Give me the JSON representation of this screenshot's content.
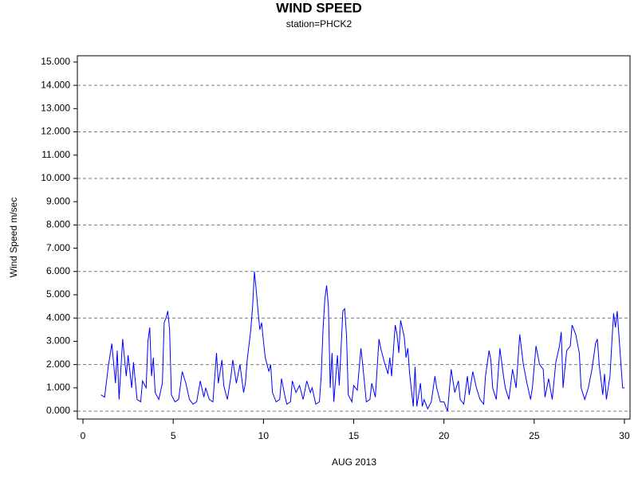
{
  "chart_data": {
    "type": "line",
    "title": "WIND SPEED",
    "subtitle": "station=PHCK2",
    "xlabel": "AUG 2013",
    "ylabel": "Wind Speed m/sec",
    "x": [
      1.0,
      1.2,
      1.4,
      1.6,
      1.8,
      1.9,
      2.0,
      2.2,
      2.4,
      2.5,
      2.7,
      2.8,
      3.0,
      3.2,
      3.3,
      3.5,
      3.6,
      3.7,
      3.8,
      3.9,
      4.0,
      4.2,
      4.4,
      4.5,
      4.6,
      4.7,
      4.8,
      4.9,
      5.1,
      5.3,
      5.5,
      5.7,
      5.9,
      6.1,
      6.3,
      6.5,
      6.7,
      6.8,
      7.0,
      7.2,
      7.4,
      7.5,
      7.7,
      7.8,
      8.0,
      8.2,
      8.3,
      8.5,
      8.7,
      8.9,
      9.0,
      9.1,
      9.3,
      9.4,
      9.5,
      9.6,
      9.7,
      9.8,
      9.9,
      10.0,
      10.1,
      10.3,
      10.4,
      10.5,
      10.7,
      10.9,
      11.0,
      11.2,
      11.3,
      11.5,
      11.6,
      11.8,
      12.0,
      12.2,
      12.4,
      12.6,
      12.7,
      12.9,
      13.1,
      13.2,
      13.3,
      13.4,
      13.5,
      13.6,
      13.7,
      13.8,
      13.9,
      14.1,
      14.2,
      14.4,
      14.5,
      14.6,
      14.7,
      14.9,
      15.0,
      15.2,
      15.4,
      15.5,
      15.7,
      15.9,
      16.0,
      16.2,
      16.4,
      16.5,
      16.7,
      16.9,
      17.0,
      17.1,
      17.3,
      17.4,
      17.5,
      17.6,
      17.8,
      17.9,
      18.0,
      18.1,
      18.3,
      18.4,
      18.5,
      18.7,
      18.8,
      18.9,
      19.1,
      19.3,
      19.5,
      19.6,
      19.8,
      20.0,
      20.2,
      20.3,
      20.4,
      20.6,
      20.8,
      20.9,
      21.1,
      21.3,
      21.4,
      21.6,
      21.8,
      22.0,
      22.2,
      22.3,
      22.5,
      22.6,
      22.7,
      22.9,
      23.1,
      23.3,
      23.4,
      23.6,
      23.8,
      24.0,
      24.2,
      24.4,
      24.6,
      24.8,
      24.9,
      25.1,
      25.3,
      25.5,
      25.6,
      25.8,
      26.0,
      26.2,
      26.4,
      26.5,
      26.6,
      26.8,
      27.0,
      27.1,
      27.3,
      27.5,
      27.6,
      27.8,
      28.0,
      28.2,
      28.4,
      28.5,
      28.6,
      28.8,
      28.9,
      29.0,
      29.2,
      29.3,
      29.4,
      29.5,
      29.6,
      29.7,
      29.8,
      29.9,
      30.0
    ],
    "values": [
      0.7,
      0.6,
      1.9,
      2.9,
      1.2,
      2.6,
      0.5,
      3.1,
      1.5,
      2.4,
      1.0,
      2.1,
      0.5,
      0.4,
      1.3,
      1.0,
      3.0,
      3.6,
      1.5,
      2.3,
      0.8,
      0.5,
      1.2,
      3.8,
      4.0,
      4.3,
      3.5,
      0.7,
      0.4,
      0.5,
      1.7,
      1.2,
      0.5,
      0.3,
      0.4,
      1.3,
      0.6,
      1.0,
      0.5,
      0.4,
      2.5,
      1.2,
      2.2,
      1.1,
      0.5,
      1.5,
      2.2,
      1.2,
      2.0,
      0.8,
      1.2,
      2.2,
      3.5,
      4.5,
      6.0,
      5.2,
      4.3,
      3.5,
      3.8,
      3.0,
      2.3,
      1.7,
      2.0,
      0.8,
      0.4,
      0.5,
      1.4,
      0.6,
      0.3,
      0.4,
      1.3,
      0.8,
      1.1,
      0.5,
      1.3,
      0.8,
      1.0,
      0.3,
      0.4,
      1.5,
      3.5,
      4.8,
      5.4,
      4.5,
      1.0,
      2.5,
      0.4,
      2.4,
      1.1,
      4.3,
      4.4,
      3.3,
      0.7,
      0.4,
      1.1,
      0.9,
      2.7,
      2.0,
      0.4,
      0.5,
      1.2,
      0.6,
      3.1,
      2.7,
      2.1,
      1.6,
      2.3,
      1.5,
      3.7,
      3.3,
      2.5,
      3.9,
      3.2,
      2.3,
      2.7,
      1.6,
      0.2,
      1.9,
      0.2,
      1.2,
      0.2,
      0.5,
      0.1,
      0.4,
      1.5,
      1.0,
      0.4,
      0.4,
      0.0,
      0.9,
      1.8,
      0.8,
      1.3,
      0.5,
      0.3,
      1.5,
      0.7,
      1.7,
      1.0,
      0.5,
      0.3,
      1.5,
      2.6,
      2.2,
      1.0,
      0.5,
      2.7,
      1.5,
      1.0,
      0.5,
      1.8,
      1.0,
      3.3,
      2.0,
      1.2,
      0.5,
      1.0,
      2.8,
      2.0,
      1.8,
      0.6,
      1.4,
      0.5,
      2.1,
      2.8,
      3.4,
      1.0,
      2.6,
      2.8,
      3.7,
      3.3,
      2.5,
      1.0,
      0.5,
      1.0,
      1.8,
      2.9,
      3.1,
      2.0,
      0.7,
      1.6,
      0.5,
      1.5,
      2.9,
      4.2,
      3.6,
      4.3,
      3.2,
      2.1,
      1.0,
      1.0
    ],
    "color": "#0000ff",
    "xlim": [
      -0.31,
      30.31
    ],
    "xticks": [
      0,
      5,
      10,
      15,
      20,
      25,
      30
    ],
    "ylim": [
      -0.34,
      15.27
    ],
    "yticks": [
      {
        "value": 0,
        "label": "0.000"
      },
      {
        "value": 1,
        "label": "1.000"
      },
      {
        "value": 2,
        "label": "2.000"
      },
      {
        "value": 3,
        "label": "3.000"
      },
      {
        "value": 4,
        "label": "4.000"
      },
      {
        "value": 5,
        "label": "5.000"
      },
      {
        "value": 6,
        "label": "6.000"
      },
      {
        "value": 7,
        "label": "7.000"
      },
      {
        "value": 8,
        "label": "8.000"
      },
      {
        "value": 9,
        "label": "9.000"
      },
      {
        "value": 10,
        "label": "10.000"
      },
      {
        "value": 11,
        "label": "11.000"
      },
      {
        "value": 12,
        "label": "12.000"
      },
      {
        "value": 13,
        "label": "13.000"
      },
      {
        "value": 14,
        "label": "14.000"
      },
      {
        "value": 15,
        "label": "15.000"
      }
    ],
    "grid": true,
    "grid_step": 2
  }
}
